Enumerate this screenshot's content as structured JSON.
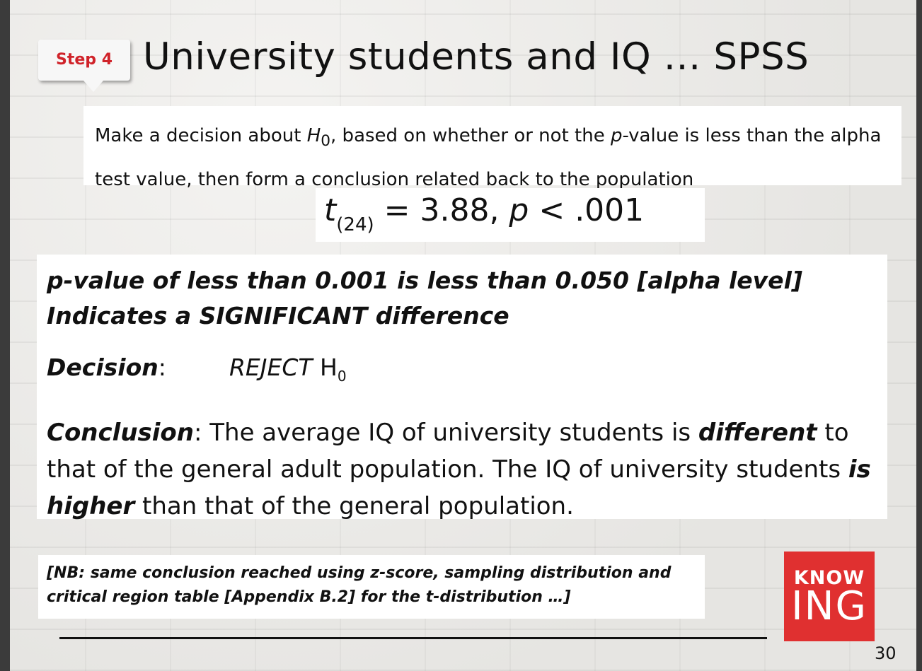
{
  "slide": {
    "step_badge": "Step 4",
    "title": "University students and IQ … SPSS",
    "intro": {
      "part1": "Make a decision about ",
      "h_symbol": "H",
      "h_subscript": "0",
      "part2": ", based on whether or not the ",
      "p_symbol": "p",
      "part3": "-value is less than the alpha test value, then form a conclusion related back to the population"
    },
    "stat": {
      "t_symbol": "t",
      "df": "(24)",
      "equals": " = 3.88, ",
      "p_symbol": "p",
      "p_value": " < .001"
    },
    "p_statement": "p-value of less than 0.001 is less than 0.050 [alpha level] Indicates a SIGNIFICANT difference",
    "decision": {
      "label": "Decision",
      "colon": ":",
      "reject": "REJECT",
      "h_symbol": " H",
      "h_subscript": "0"
    },
    "conclusion": {
      "label": "Conclusion",
      "part1": ":  The average IQ of university students is ",
      "emph1": "different",
      "part2": " to that of the general adult population.  The IQ of university students ",
      "emph2": "is higher",
      "part3": " than that of the general population."
    },
    "nb_note": "[NB: same conclusion reached using z-score, sampling distribution and critical region table [Appendix B.2] for the t-distribution …]",
    "logo": {
      "line1": "KNOW",
      "line2": "ING"
    },
    "page_number": "30"
  }
}
